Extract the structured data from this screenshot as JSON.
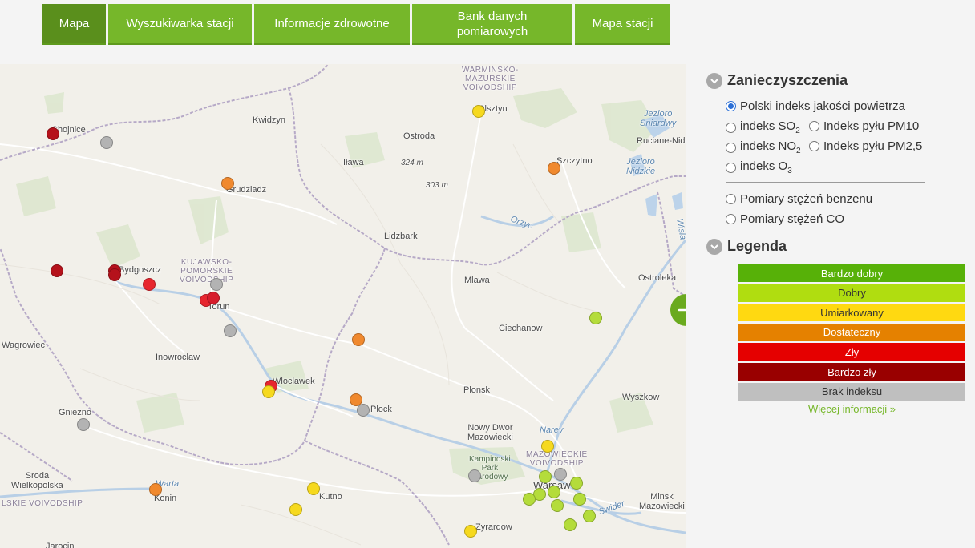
{
  "nav": [
    {
      "label": "Mapa",
      "active": true
    },
    {
      "label": "Wyszukiwarka stacji"
    },
    {
      "label": "Informacje zdrowotne"
    },
    {
      "label": "Bank danych pomiarowych"
    },
    {
      "label": "Mapa stacji"
    }
  ],
  "panel": {
    "pollutants_title": "Zanieczyszczenia",
    "options": {
      "aqi": "Polski indeks jakości powietrza",
      "so2_prefix": "indeks SO",
      "so2_sub": "2",
      "pm10": "Indeks pyłu PM10",
      "no2_prefix": "indeks NO",
      "no2_sub": "2",
      "pm25": "Indeks pyłu PM2,5",
      "o3_prefix": "indeks O",
      "o3_sub": "3",
      "benzene": "Pomiary stężeń benzenu",
      "co": "Pomiary stężeń CO"
    },
    "selected_option": "aqi",
    "legend_title": "Legenda",
    "legend": [
      {
        "label": "Bardzo dobry",
        "color": "#57b108",
        "text_color": "#ffffff"
      },
      {
        "label": "Dobry",
        "color": "#b0dd10",
        "text_color": "#333333"
      },
      {
        "label": "Umiarkowany",
        "color": "#ffd911",
        "text_color": "#333333"
      },
      {
        "label": "Dostateczny",
        "color": "#e58100",
        "text_color": "#ffffff"
      },
      {
        "label": "Zły",
        "color": "#e50000",
        "text_color": "#ffffff"
      },
      {
        "label": "Bardzo zły",
        "color": "#990000",
        "text_color": "#ffffff"
      },
      {
        "label": "Brak indeksu",
        "color": "#bfbfbf",
        "text_color": "#333333"
      }
    ],
    "more_info": "Więcej informacji »"
  },
  "map": {
    "cities": {
      "chojnice": "Chojnice",
      "kwidzyn": "Kwidzyn",
      "ostroda": "Ostroda",
      "olsztyn": "Olsztyn",
      "ilawa": "Iława",
      "szczytno": "Szczytno",
      "grudziadz": "Grudziadz",
      "lidzbark": "Lidzbark",
      "bydgoszcz": "Bydgoszcz",
      "torun": "Torun",
      "mlawa": "Mlawa",
      "ostroleka": "Ostroleka",
      "ciechanow": "Ciechanow",
      "wagrowiec": "Wagrowiec",
      "inowroclaw": "Inowroclaw",
      "wloclawek": "Wloclawek",
      "plock": "Plock",
      "plonsk": "Plonsk",
      "wyszkow": "Wyszkow",
      "gniezno": "Gniezno",
      "nowy_dwor": "Nowy Dwor\nMazowiecki",
      "warsaw": "Warsaw",
      "minsk": "Minsk\nMazowiecki",
      "sroda": "Sroda\nWielkopolska",
      "konin": "Konin",
      "kutno": "Kutno",
      "zyrardow": "Zyrardow",
      "jarocin": "Jarocin",
      "ruciane": "Ruciane-Nida"
    },
    "regions": {
      "warminsko": "WARMINSKO-\nMAZURSKIE\nVOIVODSHIP",
      "kujawsko": "KUJAWSKO-\nPOMORSKIE\nVOIVODSHIP",
      "mazowieckie": "MAZOWIECKIE\nVOIVODSHIP",
      "wielkopolskie": "LSKIE VOIVODSHIP"
    },
    "water": {
      "sniardwy": "Jezioro\nSniardwy",
      "nidzkie": "Jezioro\nNidzkie",
      "narew": "Narev",
      "wisla": "Wisla",
      "orzyc": "Orzyc",
      "swider": "Swider",
      "warta": "Warta"
    },
    "parks": {
      "kampinoski": "Kampinoski\nPark\nNarodowy"
    },
    "elevations": {
      "e1": "324 m",
      "e2": "303 m"
    },
    "stations": [
      {
        "level": "Bardzo zły",
        "color": "#b5121b"
      },
      {
        "level": "Brak indeksu",
        "color": "#b3b3b3"
      },
      {
        "level": "Umiarkowany",
        "color": "#f6d91e"
      },
      {
        "level": "Dostateczny",
        "color": "#f0892e"
      },
      {
        "level": "Dostateczny",
        "color": "#f0892e"
      },
      {
        "level": "Bardzo zły",
        "color": "#b5121b"
      },
      {
        "level": "Bardzo zły",
        "color": "#b5121b"
      },
      {
        "level": "Bardzo zły",
        "color": "#b5121b"
      },
      {
        "level": "Zły",
        "color": "#e7262f"
      },
      {
        "level": "Brak indeksu",
        "color": "#b3b3b3"
      },
      {
        "level": "Zły",
        "color": "#e7262f"
      },
      {
        "level": "Zły",
        "color": "#d71d2c"
      },
      {
        "level": "Brak indeksu",
        "color": "#b3b3b3"
      },
      {
        "level": "Dobry",
        "color": "#b4dc3b"
      },
      {
        "level": "Dostateczny",
        "color": "#f0892e"
      },
      {
        "level": "Zły",
        "color": "#e7262f"
      },
      {
        "level": "Umiarkowany",
        "color": "#f6d91e"
      },
      {
        "level": "Dostateczny",
        "color": "#f0892e"
      },
      {
        "level": "Brak indeksu",
        "color": "#b3b3b3"
      },
      {
        "level": "Brak indeksu",
        "color": "#b3b3b3"
      },
      {
        "level": "Umiarkowany",
        "color": "#f6d91e"
      },
      {
        "level": "Brak indeksu",
        "color": "#b3b3b3"
      },
      {
        "level": "Brak indeksu",
        "color": "#b3b3b3"
      },
      {
        "level": "Dobry",
        "color": "#b4dc3b"
      },
      {
        "level": "Dostateczny",
        "color": "#f0892e"
      },
      {
        "level": "Umiarkowany",
        "color": "#f6d91e"
      },
      {
        "level": "Umiarkowany",
        "color": "#f6d91e"
      },
      {
        "level": "Dobry",
        "color": "#b4dc3b"
      },
      {
        "level": "Dobry",
        "color": "#b4dc3b"
      },
      {
        "level": "Dobry",
        "color": "#b4dc3b"
      },
      {
        "level": "Dobry",
        "color": "#b4dc3b"
      },
      {
        "level": "Dobry",
        "color": "#b4dc3b"
      },
      {
        "level": "Dobry",
        "color": "#b4dc3b"
      },
      {
        "level": "Dobry",
        "color": "#b4dc3b"
      },
      {
        "level": "Dobry",
        "color": "#b4dc3b"
      },
      {
        "level": "Umiarkowany",
        "color": "#f6d91e"
      }
    ]
  }
}
